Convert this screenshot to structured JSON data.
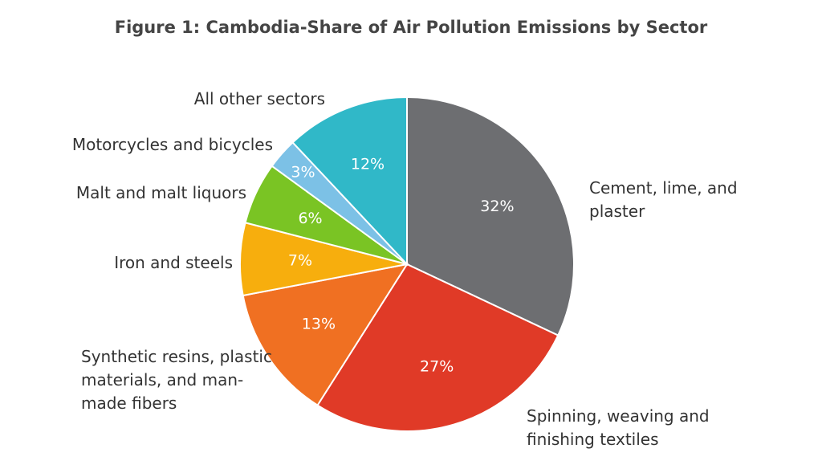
{
  "chart_data": {
    "type": "pie",
    "title": "Figure 1: Cambodia-Share of Air Pollution Emissions by Sector",
    "categories": [
      "Cement, lime, and plaster",
      "Spinning, weaving and finishing textiles",
      "Synthetic resins, plastic materials, and man-made fibers",
      "Iron and steels",
      "Malt and malt liquors",
      "Motorcycles and bicycles",
      "All other sectors"
    ],
    "values": [
      32,
      27,
      13,
      7,
      6,
      3,
      12
    ],
    "value_labels": [
      "32%",
      "27%",
      "13%",
      "7%",
      "6%",
      "3%",
      "12%"
    ],
    "colors": [
      "#6d6e71",
      "#e03a27",
      "#f07022",
      "#f7ae0d",
      "#7ac424",
      "#7cc1e6",
      "#30b8c8"
    ]
  }
}
